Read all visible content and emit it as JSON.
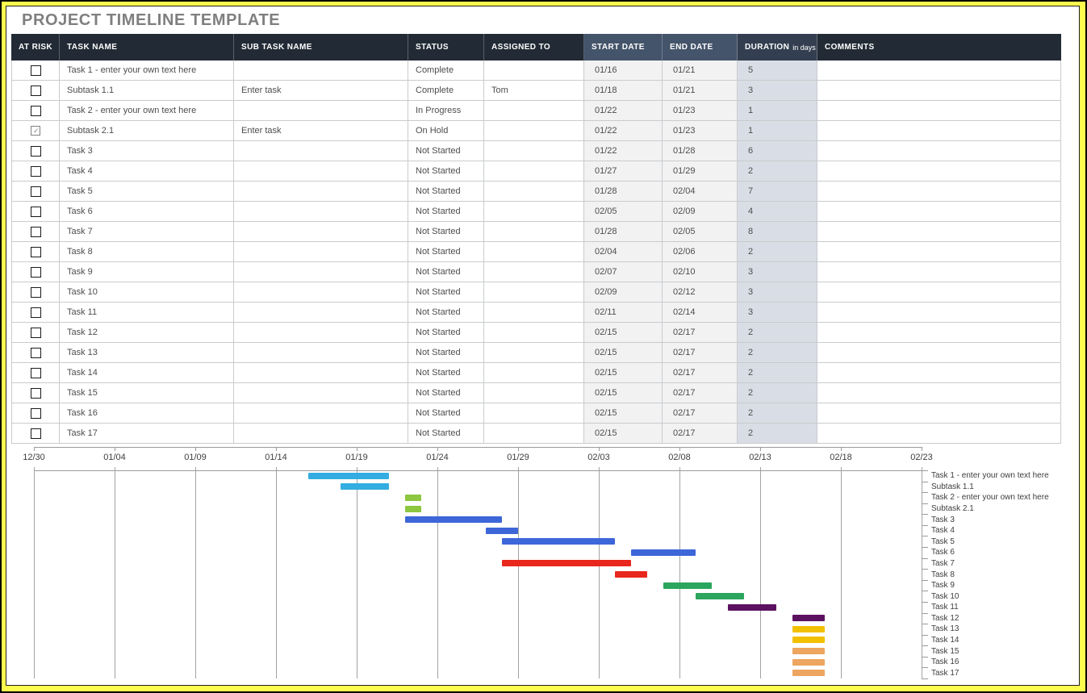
{
  "page": {
    "title": "PROJECT TIMELINE TEMPLATE"
  },
  "colors": {
    "frame_yellow": "#FCFC4E",
    "title_text": "#7F7F7F",
    "header_dark_bg": "#222B35",
    "header_slate_bg": "#44546A",
    "header_duration_bg": "#333F50",
    "header_text": "#FFFFFF",
    "cell_text": "#4D4D4D",
    "date_cell_bg": "#F2F2F3",
    "duration_cell_bg": "#D9DEE6",
    "table_grid": "#C9CBCD",
    "chart_axis": "#9B9B9B",
    "bar_cyan": "#33ADE1",
    "bar_light_green": "#8DC63F",
    "bar_blue": "#3D66D8",
    "bar_red": "#E8271D",
    "bar_green": "#2CA55E",
    "bar_purple": "#5C1160",
    "bar_gold": "#F3C000",
    "bar_orange": "#EDA55F"
  },
  "table": {
    "columns": {
      "at_risk": "AT RISK",
      "task": "TASK NAME",
      "subtask": "SUB TASK NAME",
      "status": "STATUS",
      "assigned": "ASSIGNED TO",
      "start": "START DATE",
      "end": "END DATE",
      "duration_bold": "DURATION",
      "duration_suffix": "in days",
      "comments": "COMMENTS"
    },
    "rows": [
      {
        "at_risk": false,
        "task": "Task 1 - enter your own text here",
        "subtask": "",
        "status": "Complete",
        "assigned": "",
        "start": "01/16",
        "end": "01/21",
        "duration": "5",
        "comments": ""
      },
      {
        "at_risk": false,
        "task": "Subtask 1.1",
        "subtask": "Enter task",
        "status": "Complete",
        "assigned": "Tom",
        "start": "01/18",
        "end": "01/21",
        "duration": "3",
        "comments": ""
      },
      {
        "at_risk": false,
        "task": "Task 2 - enter your own text here",
        "subtask": "",
        "status": "In Progress",
        "assigned": "",
        "start": "01/22",
        "end": "01/23",
        "duration": "1",
        "comments": ""
      },
      {
        "at_risk": true,
        "task": "Subtask 2.1",
        "subtask": "Enter task",
        "status": "On Hold",
        "assigned": "",
        "start": "01/22",
        "end": "01/23",
        "duration": "1",
        "comments": ""
      },
      {
        "at_risk": false,
        "task": "Task 3",
        "subtask": "",
        "status": "Not Started",
        "assigned": "",
        "start": "01/22",
        "end": "01/28",
        "duration": "6",
        "comments": ""
      },
      {
        "at_risk": false,
        "task": "Task 4",
        "subtask": "",
        "status": "Not Started",
        "assigned": "",
        "start": "01/27",
        "end": "01/29",
        "duration": "2",
        "comments": ""
      },
      {
        "at_risk": false,
        "task": "Task 5",
        "subtask": "",
        "status": "Not Started",
        "assigned": "",
        "start": "01/28",
        "end": "02/04",
        "duration": "7",
        "comments": ""
      },
      {
        "at_risk": false,
        "task": "Task 6",
        "subtask": "",
        "status": "Not Started",
        "assigned": "",
        "start": "02/05",
        "end": "02/09",
        "duration": "4",
        "comments": ""
      },
      {
        "at_risk": false,
        "task": "Task 7",
        "subtask": "",
        "status": "Not Started",
        "assigned": "",
        "start": "01/28",
        "end": "02/05",
        "duration": "8",
        "comments": ""
      },
      {
        "at_risk": false,
        "task": "Task 8",
        "subtask": "",
        "status": "Not Started",
        "assigned": "",
        "start": "02/04",
        "end": "02/06",
        "duration": "2",
        "comments": ""
      },
      {
        "at_risk": false,
        "task": "Task 9",
        "subtask": "",
        "status": "Not Started",
        "assigned": "",
        "start": "02/07",
        "end": "02/10",
        "duration": "3",
        "comments": ""
      },
      {
        "at_risk": false,
        "task": "Task 10",
        "subtask": "",
        "status": "Not Started",
        "assigned": "",
        "start": "02/09",
        "end": "02/12",
        "duration": "3",
        "comments": ""
      },
      {
        "at_risk": false,
        "task": "Task 11",
        "subtask": "",
        "status": "Not Started",
        "assigned": "",
        "start": "02/11",
        "end": "02/14",
        "duration": "3",
        "comments": ""
      },
      {
        "at_risk": false,
        "task": "Task 12",
        "subtask": "",
        "status": "Not Started",
        "assigned": "",
        "start": "02/15",
        "end": "02/17",
        "duration": "2",
        "comments": ""
      },
      {
        "at_risk": false,
        "task": "Task 13",
        "subtask": "",
        "status": "Not Started",
        "assigned": "",
        "start": "02/15",
        "end": "02/17",
        "duration": "2",
        "comments": ""
      },
      {
        "at_risk": false,
        "task": "Task 14",
        "subtask": "",
        "status": "Not Started",
        "assigned": "",
        "start": "02/15",
        "end": "02/17",
        "duration": "2",
        "comments": ""
      },
      {
        "at_risk": false,
        "task": "Task 15",
        "subtask": "",
        "status": "Not Started",
        "assigned": "",
        "start": "02/15",
        "end": "02/17",
        "duration": "2",
        "comments": ""
      },
      {
        "at_risk": false,
        "task": "Task 16",
        "subtask": "",
        "status": "Not Started",
        "assigned": "",
        "start": "02/15",
        "end": "02/17",
        "duration": "2",
        "comments": ""
      },
      {
        "at_risk": false,
        "task": "Task 17",
        "subtask": "",
        "status": "Not Started",
        "assigned": "",
        "start": "02/15",
        "end": "02/17",
        "duration": "2",
        "comments": ""
      }
    ]
  },
  "chart_data": {
    "type": "gantt",
    "title": "",
    "x_ticks": [
      "12/30",
      "01/04",
      "01/09",
      "01/14",
      "01/19",
      "01/24",
      "01/29",
      "02/03",
      "02/08",
      "02/13",
      "02/18",
      "02/23"
    ],
    "x_range": [
      "12/30",
      "02/23"
    ],
    "grid": true,
    "category_axis_position": "right",
    "categories": [
      "Task 1 - enter your own text here",
      "Subtask 1.1",
      "Task 2 - enter your own text here",
      "Subtask 2.1",
      "Task 3",
      "Task 4",
      "Task 5",
      "Task 6",
      "Task 7",
      "Task 8",
      "Task 9",
      "Task 10",
      "Task 11",
      "Task 12",
      "Task 13",
      "Task 14",
      "Task 15",
      "Task 16",
      "Task 17"
    ],
    "bars": [
      {
        "label": "Task 1 - enter your own text here",
        "start": "01/16",
        "end": "01/21",
        "duration_days": 5,
        "color": "#33ADE1"
      },
      {
        "label": "Subtask 1.1",
        "start": "01/18",
        "end": "01/21",
        "duration_days": 3,
        "color": "#33ADE1"
      },
      {
        "label": "Task 2 - enter your own text here",
        "start": "01/22",
        "end": "01/23",
        "duration_days": 1,
        "color": "#8DC63F"
      },
      {
        "label": "Subtask 2.1",
        "start": "01/22",
        "end": "01/23",
        "duration_days": 1,
        "color": "#8DC63F"
      },
      {
        "label": "Task 3",
        "start": "01/22",
        "end": "01/28",
        "duration_days": 6,
        "color": "#3D66D8"
      },
      {
        "label": "Task 4",
        "start": "01/27",
        "end": "01/29",
        "duration_days": 2,
        "color": "#3D66D8"
      },
      {
        "label": "Task 5",
        "start": "01/28",
        "end": "02/04",
        "duration_days": 7,
        "color": "#3D66D8"
      },
      {
        "label": "Task 6",
        "start": "02/05",
        "end": "02/09",
        "duration_days": 4,
        "color": "#3D66D8"
      },
      {
        "label": "Task 7",
        "start": "01/28",
        "end": "02/05",
        "duration_days": 8,
        "color": "#E8271D"
      },
      {
        "label": "Task 8",
        "start": "02/04",
        "end": "02/06",
        "duration_days": 2,
        "color": "#E8271D"
      },
      {
        "label": "Task 9",
        "start": "02/07",
        "end": "02/10",
        "duration_days": 3,
        "color": "#2CA55E"
      },
      {
        "label": "Task 10",
        "start": "02/09",
        "end": "02/12",
        "duration_days": 3,
        "color": "#2CA55E"
      },
      {
        "label": "Task 11",
        "start": "02/11",
        "end": "02/14",
        "duration_days": 3,
        "color": "#5C1160"
      },
      {
        "label": "Task 12",
        "start": "02/15",
        "end": "02/17",
        "duration_days": 2,
        "color": "#5C1160"
      },
      {
        "label": "Task 13",
        "start": "02/15",
        "end": "02/17",
        "duration_days": 2,
        "color": "#F3C000"
      },
      {
        "label": "Task 14",
        "start": "02/15",
        "end": "02/17",
        "duration_days": 2,
        "color": "#F3C000"
      },
      {
        "label": "Task 15",
        "start": "02/15",
        "end": "02/17",
        "duration_days": 2,
        "color": "#EDA55F"
      },
      {
        "label": "Task 16",
        "start": "02/15",
        "end": "02/17",
        "duration_days": 2,
        "color": "#EDA55F"
      },
      {
        "label": "Task 17",
        "start": "02/15",
        "end": "02/17",
        "duration_days": 2,
        "color": "#EDA55F"
      }
    ]
  }
}
